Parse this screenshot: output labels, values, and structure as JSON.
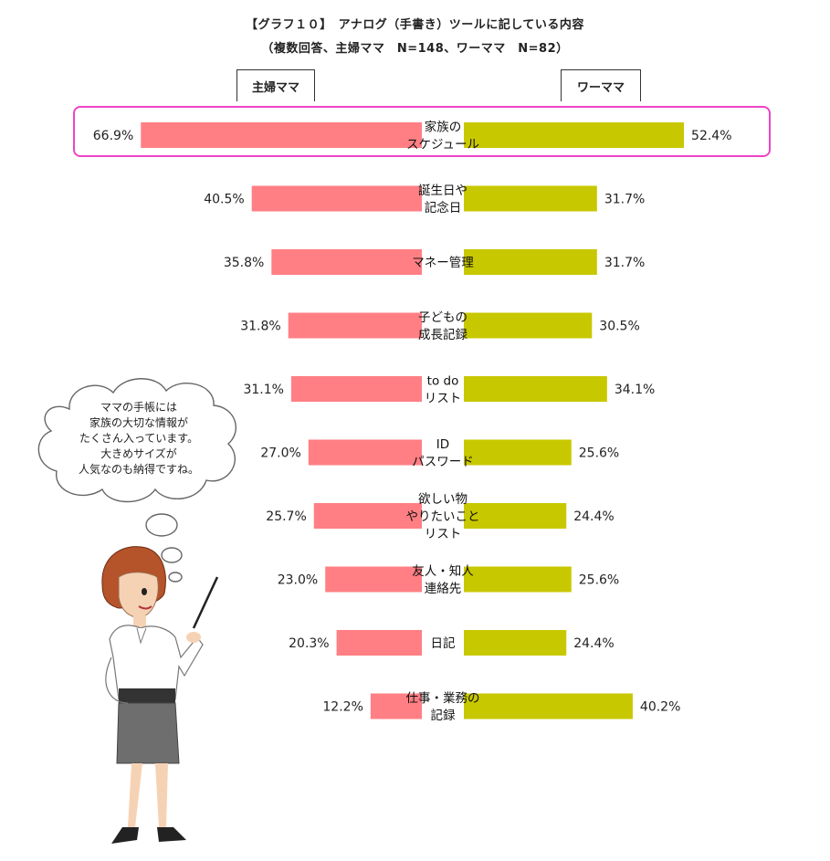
{
  "title": "【グラフ１０】　アナログ（手書き）ツールに記している内容",
  "subtitle": "（複数回答、主婦ママ　N=148、ワーママ　N=82）",
  "bubble_text": "ママの手帳には\n家族の大切な情報が\nたくさん入っています。\n大きめサイズが\n人気なのも納得ですね。",
  "colors": {
    "housewife": "#ff7f84",
    "working": "#c8c800",
    "highlight": "#ee44c6"
  },
  "chart_data": {
    "type": "bar",
    "orientation": "horizontal-butterfly",
    "categories": [
      "家族の\nスケジュール",
      "誕生日や\n記念日",
      "マネー管理",
      "子どもの\n成長記録",
      "to do\nリスト",
      "ID\nパスワード",
      "欲しい物\nやりたいこと\nリスト",
      "友人・知人\n連絡先",
      "日記",
      "仕事・業務の\n記録"
    ],
    "series": [
      {
        "name": "主婦ママ",
        "values": [
          66.9,
          40.5,
          35.8,
          31.8,
          31.1,
          27.0,
          25.7,
          23.0,
          20.3,
          12.2
        ],
        "labels": [
          "66.9%",
          "40.5%",
          "35.8%",
          "31.8%",
          "31.1%",
          "27.0%",
          "25.7%",
          "23.0%",
          "20.3%",
          "12.2%"
        ]
      },
      {
        "name": "ワーママ",
        "values": [
          52.4,
          31.7,
          31.7,
          30.5,
          34.1,
          25.6,
          24.4,
          25.6,
          24.4,
          40.2
        ],
        "labels": [
          "52.4%",
          "31.7%",
          "31.7%",
          "30.5%",
          "34.1%",
          "25.6%",
          "24.4%",
          "25.6%",
          "24.4%",
          "40.2%"
        ]
      }
    ],
    "highlighted_category": 0
  }
}
